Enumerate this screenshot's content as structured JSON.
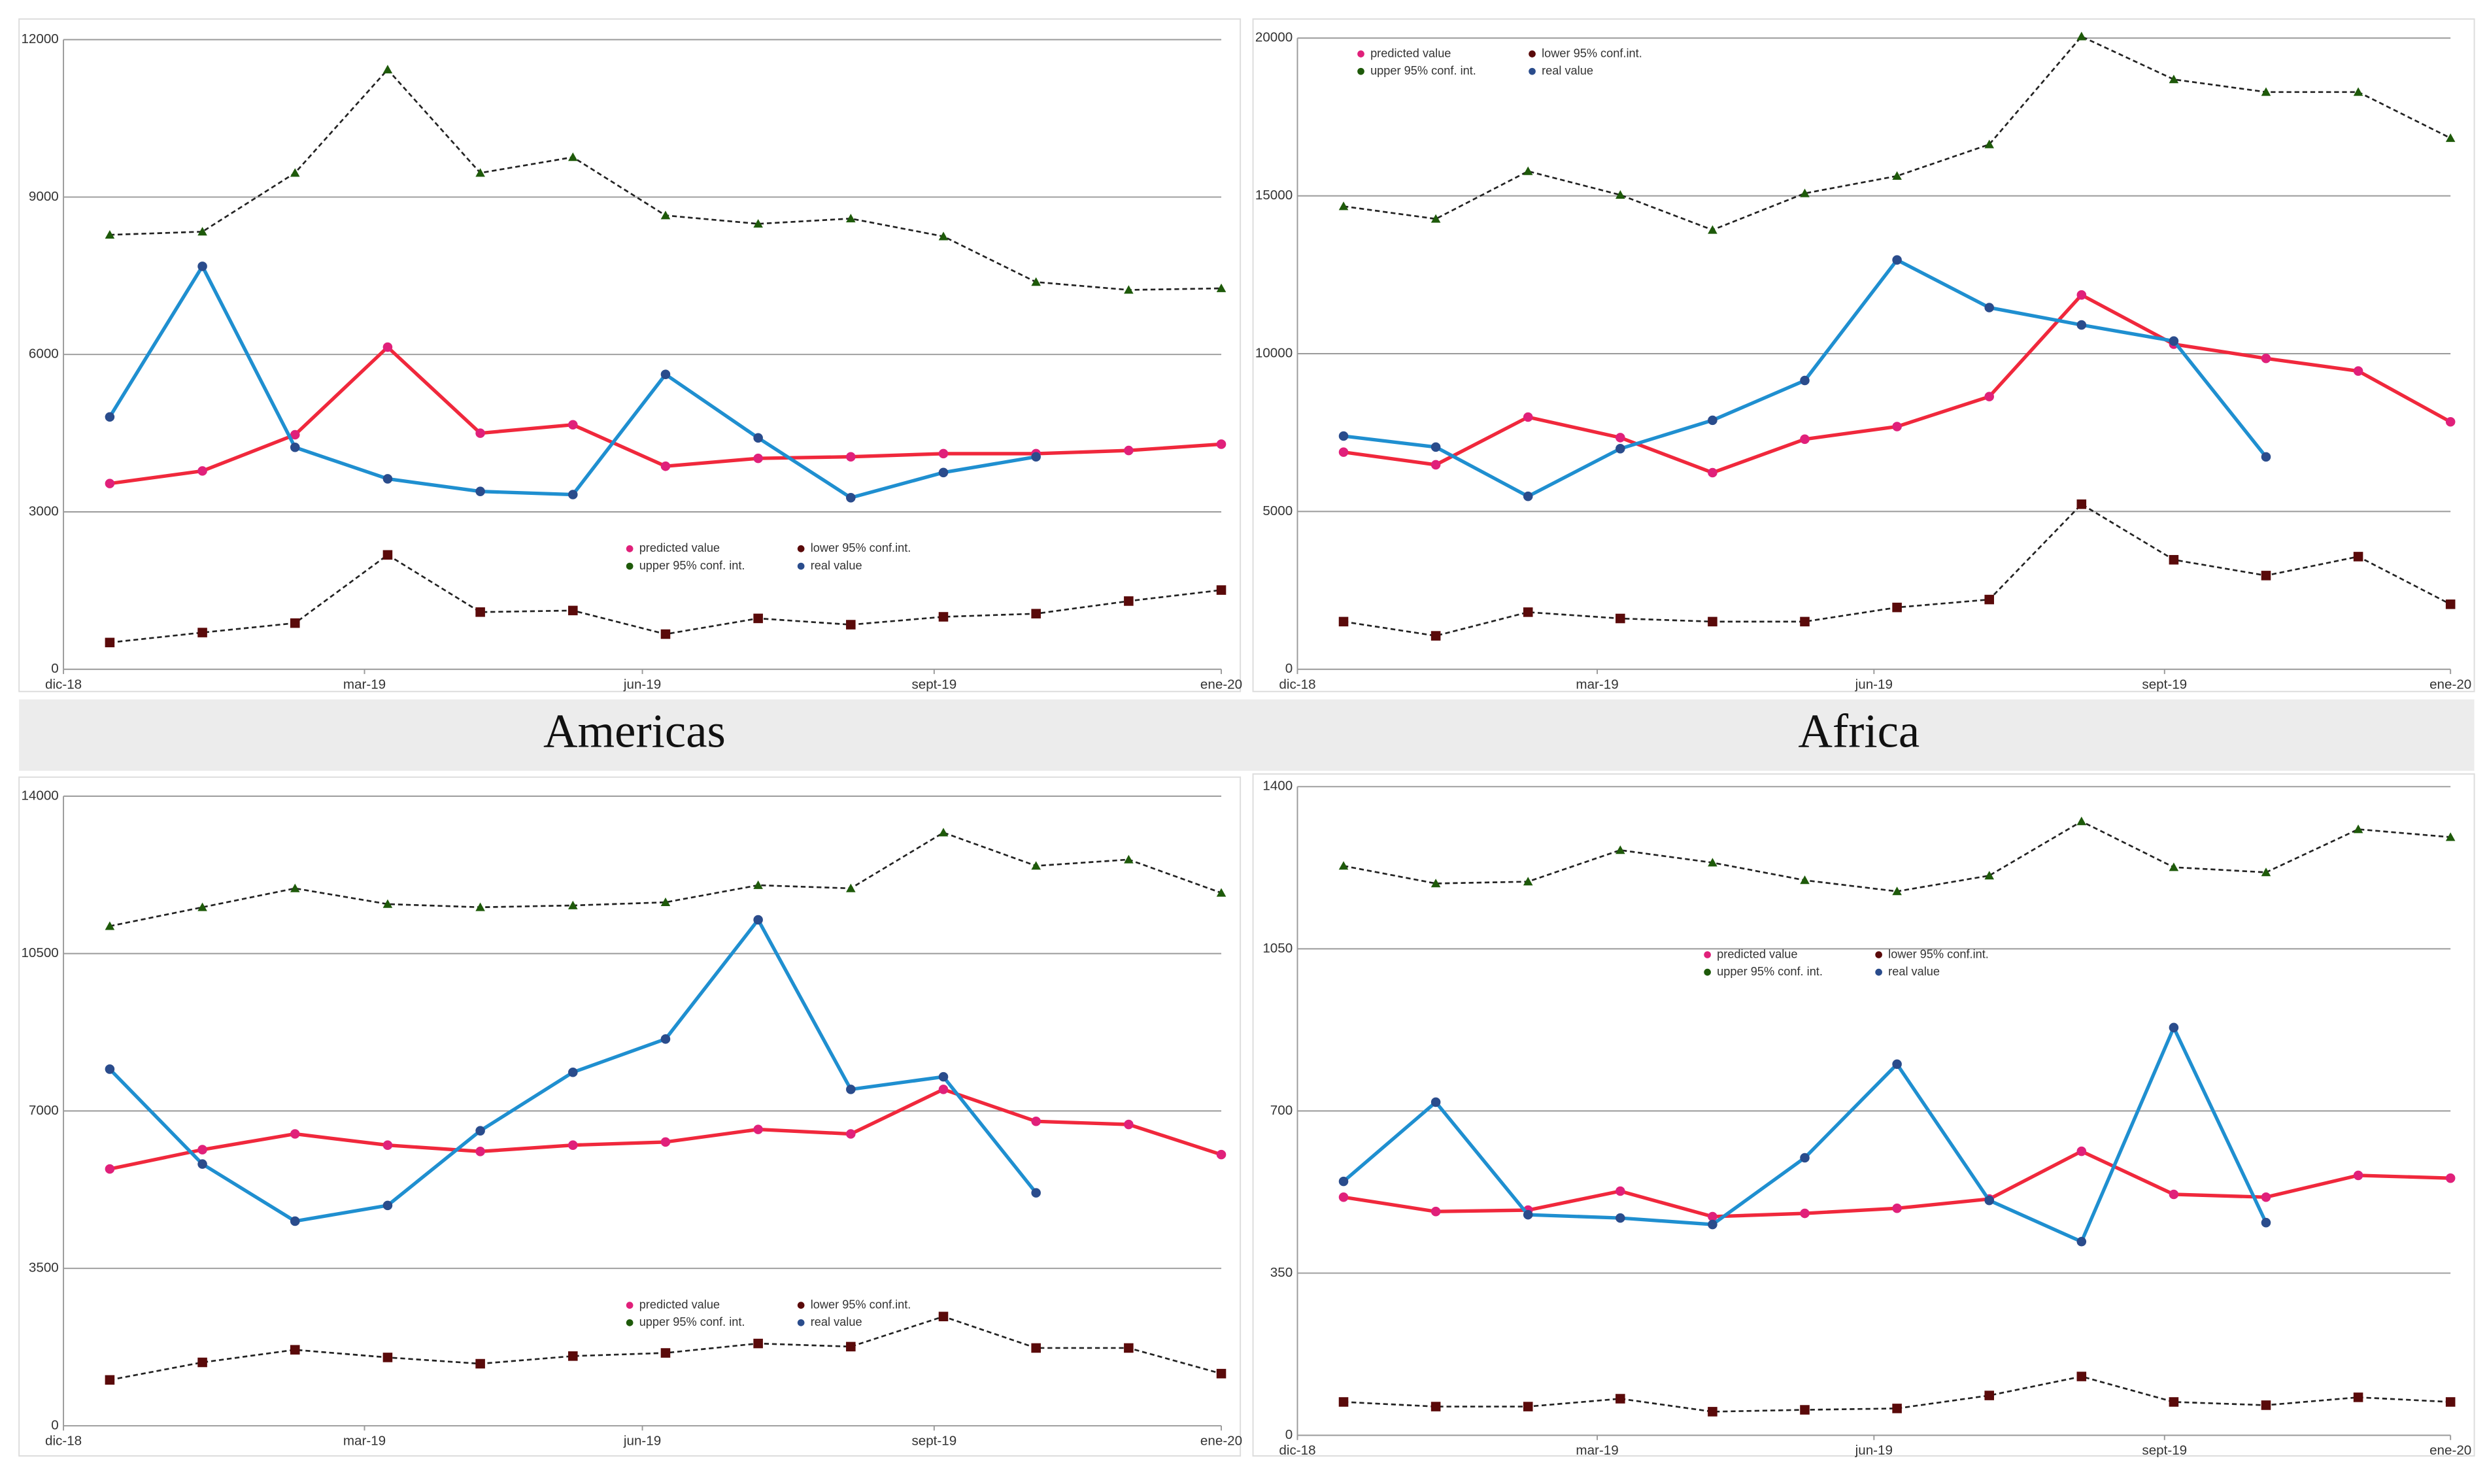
{
  "chart_data": [
    {
      "type": "line",
      "caption": "Americas",
      "x": [
        1,
        2,
        3,
        4,
        5,
        6,
        7,
        8,
        9,
        10,
        11,
        12,
        13
      ],
      "xlim": [
        0.5,
        13
      ],
      "xticks": [
        {
          "value": 0.5,
          "label": "dic-18"
        },
        {
          "value": 3.75,
          "label": "mar-19"
        },
        {
          "value": 6.75,
          "label": "jun-19"
        },
        {
          "value": 9.9,
          "label": "sept-19"
        },
        {
          "value": 13,
          "label": "ene-20"
        }
      ],
      "ylim": [
        0,
        12000
      ],
      "yticks": [
        0,
        3000,
        6000,
        9000,
        12000
      ],
      "grid": true,
      "legend": "lower center",
      "series": [
        {
          "name": "predicted value",
          "color": "#f0283c",
          "marker": "circle",
          "marker_color": "#e0207a",
          "line_style": "solid",
          "values": [
            3540,
            3780,
            4470,
            6140,
            4500,
            4660,
            3870,
            4020,
            4050,
            4110,
            4110,
            4170,
            4290
          ]
        },
        {
          "name": "lower 95% conf.int.",
          "color": "#222222",
          "marker": "square",
          "marker_color": "#5a0a0a",
          "line_style": "dashed",
          "values": [
            510,
            700,
            880,
            2180,
            1090,
            1120,
            670,
            970,
            850,
            1000,
            1060,
            1300,
            1510
          ]
        },
        {
          "name": "upper 95% conf. int.",
          "color": "#222222",
          "marker": "triangle",
          "marker_color": "#1e5a0a",
          "line_style": "dashed",
          "values": [
            8280,
            8340,
            9460,
            11430,
            9460,
            9760,
            8650,
            8490,
            8590,
            8250,
            7380,
            7230,
            7260
          ]
        },
        {
          "name": "real value",
          "color": "#1f8fd0",
          "marker": "circle",
          "marker_color": "#2a4c8c",
          "line_style": "solid",
          "values": [
            4810,
            7680,
            4230,
            3630,
            3390,
            3330,
            5620,
            4410,
            3270,
            3750,
            4050,
            null,
            null
          ]
        }
      ]
    },
    {
      "type": "line",
      "caption": "Africa",
      "x": [
        1,
        2,
        3,
        4,
        5,
        6,
        7,
        8,
        9,
        10,
        11,
        12,
        13
      ],
      "xlim": [
        0.5,
        13
      ],
      "xticks": [
        {
          "value": 0.5,
          "label": "dic-18"
        },
        {
          "value": 3.75,
          "label": "mar-19"
        },
        {
          "value": 6.75,
          "label": "jun-19"
        },
        {
          "value": 9.9,
          "label": "sept-19"
        },
        {
          "value": 13,
          "label": "ene-20"
        }
      ],
      "ylim": [
        0,
        20000
      ],
      "yticks": [
        0,
        5000,
        10000,
        15000,
        20000
      ],
      "grid": true,
      "legend": "upper left",
      "series": [
        {
          "name": "predicted value",
          "color": "#f0283c",
          "marker": "circle",
          "marker_color": "#e0207a",
          "line_style": "solid",
          "values": [
            6880,
            6480,
            7990,
            7340,
            6230,
            7290,
            7690,
            8640,
            11860,
            10300,
            9850,
            9450,
            7840
          ]
        },
        {
          "name": "lower 95% conf.int.",
          "color": "#222222",
          "marker": "square",
          "marker_color": "#5a0a0a",
          "line_style": "dashed",
          "values": [
            1510,
            1060,
            1810,
            1610,
            1510,
            1510,
            1960,
            2210,
            5230,
            3470,
            2970,
            3570,
            2060
          ]
        },
        {
          "name": "upper 95% conf. int.",
          "color": "#222222",
          "marker": "triangle",
          "marker_color": "#1e5a0a",
          "line_style": "dashed",
          "values": [
            14670,
            14270,
            15780,
            15030,
            13920,
            15080,
            15630,
            16630,
            20050,
            18690,
            18290,
            18290,
            16830
          ]
        },
        {
          "name": "real value",
          "color": "#1f8fd0",
          "marker": "circle",
          "marker_color": "#2a4c8c",
          "line_style": "solid",
          "values": [
            7390,
            7040,
            5480,
            6990,
            7890,
            9150,
            12970,
            11460,
            10910,
            10400,
            6730,
            null,
            null
          ]
        }
      ]
    },
    {
      "type": "line",
      "x": [
        1,
        2,
        3,
        4,
        5,
        6,
        7,
        8,
        9,
        10,
        11,
        12,
        13
      ],
      "xlim": [
        0.5,
        13
      ],
      "xticks": [
        {
          "value": 0.5,
          "label": "dic-18"
        },
        {
          "value": 3.75,
          "label": "mar-19"
        },
        {
          "value": 6.75,
          "label": "jun-19"
        },
        {
          "value": 9.9,
          "label": "sept-19"
        },
        {
          "value": 13,
          "label": "ene-20"
        }
      ],
      "ylim": [
        0,
        14000
      ],
      "yticks": [
        0,
        3500,
        7000,
        10500,
        14000
      ],
      "grid": true,
      "legend": "lower center",
      "series": [
        {
          "name": "predicted value",
          "color": "#f0283c",
          "marker": "circle",
          "marker_color": "#e0207a",
          "line_style": "solid",
          "values": [
            5710,
            6140,
            6490,
            6240,
            6100,
            6240,
            6310,
            6590,
            6490,
            7480,
            6770,
            6700,
            6030
          ]
        },
        {
          "name": "lower 95% conf.int.",
          "color": "#222222",
          "marker": "square",
          "marker_color": "#5a0a0a",
          "line_style": "dashed",
          "values": [
            1020,
            1410,
            1690,
            1520,
            1380,
            1550,
            1620,
            1830,
            1760,
            2430,
            1730,
            1730,
            1160
          ]
        },
        {
          "name": "upper 95% conf. int.",
          "color": "#222222",
          "marker": "triangle",
          "marker_color": "#1e5a0a",
          "line_style": "dashed",
          "values": [
            11110,
            11530,
            11950,
            11600,
            11530,
            11570,
            11640,
            12020,
            11950,
            13190,
            12450,
            12590,
            11850
          ]
        },
        {
          "name": "real value",
          "color": "#1f8fd0",
          "marker": "circle",
          "marker_color": "#2a4c8c",
          "line_style": "solid",
          "values": [
            7930,
            5820,
            4550,
            4900,
            6560,
            7860,
            8600,
            11250,
            7480,
            7760,
            5180,
            null,
            null
          ]
        }
      ]
    },
    {
      "type": "line",
      "x": [
        1,
        2,
        3,
        4,
        5,
        6,
        7,
        8,
        9,
        10,
        11,
        12,
        13
      ],
      "xlim": [
        0.5,
        13
      ],
      "xticks": [
        {
          "value": 0.5,
          "label": "dic-18"
        },
        {
          "value": 3.75,
          "label": "mar-19"
        },
        {
          "value": 6.75,
          "label": "jun-19"
        },
        {
          "value": 9.9,
          "label": "sept-19"
        },
        {
          "value": 13,
          "label": "ene-20"
        }
      ],
      "ylim": [
        0,
        1400
      ],
      "yticks": [
        0,
        350,
        700,
        1050,
        1400
      ],
      "grid": true,
      "legend": "upper center",
      "series": [
        {
          "name": "predicted value",
          "color": "#f0283c",
          "marker": "circle",
          "marker_color": "#e0207a",
          "line_style": "solid",
          "values": [
            514,
            483,
            486,
            527,
            472,
            479,
            490,
            510,
            613,
            520,
            514,
            561,
            555
          ]
        },
        {
          "name": "lower 95% conf.int.",
          "color": "#222222",
          "marker": "square",
          "marker_color": "#5a0a0a",
          "line_style": "dashed",
          "values": [
            72,
            62,
            62,
            79,
            51,
            55,
            58,
            86,
            127,
            72,
            65,
            82,
            72
          ]
        },
        {
          "name": "upper 95% conf. int.",
          "color": "#222222",
          "marker": "triangle",
          "marker_color": "#1e5a0a",
          "line_style": "dashed",
          "values": [
            1229,
            1191,
            1195,
            1263,
            1236,
            1198,
            1174,
            1208,
            1325,
            1226,
            1215,
            1308,
            1291
          ]
        },
        {
          "name": "real value",
          "color": "#1f8fd0",
          "marker": "circle",
          "marker_color": "#2a4c8c",
          "line_style": "solid",
          "values": [
            548,
            719,
            476,
            469,
            455,
            599,
            801,
            507,
            418,
            880,
            459,
            null,
            null
          ]
        }
      ]
    }
  ]
}
